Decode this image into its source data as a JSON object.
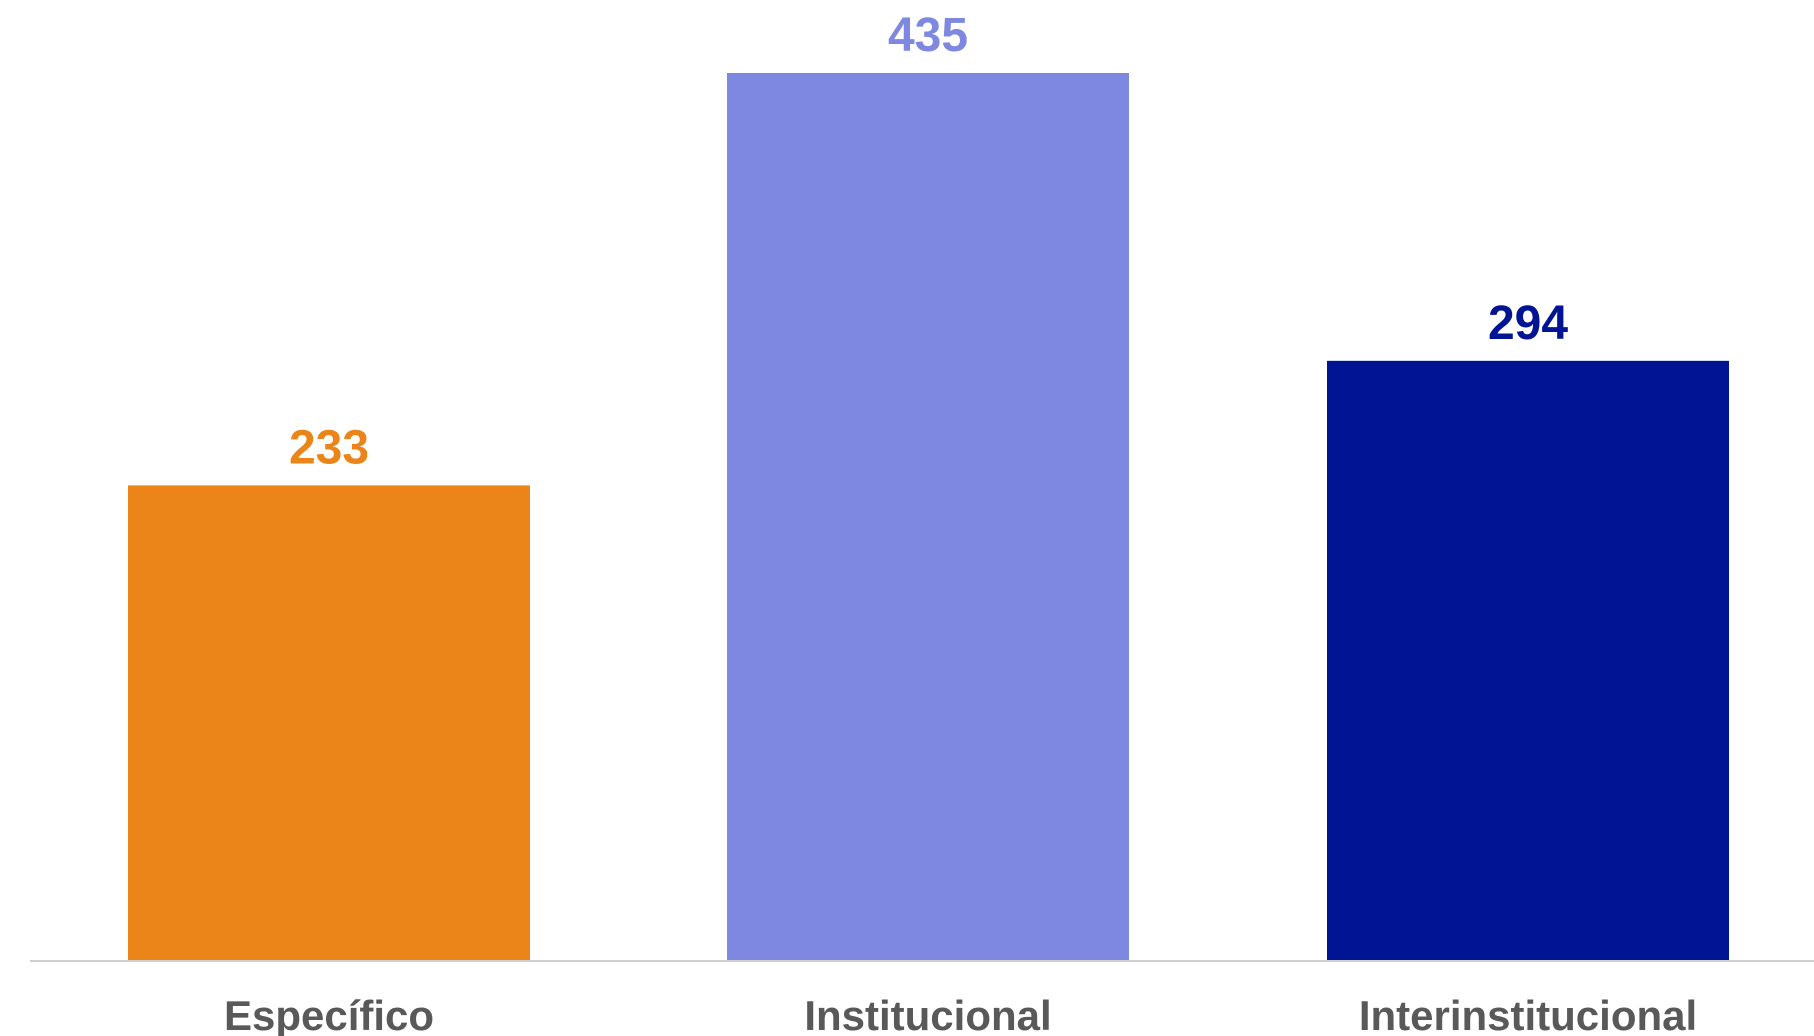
{
  "chart_data": {
    "type": "bar",
    "title": "",
    "xlabel": "",
    "ylabel": "",
    "categories": [
      "Específico",
      "Institucional",
      "Interinstitucional"
    ],
    "values": [
      233,
      435,
      294
    ],
    "colors": [
      "#EB8519",
      "#7E88E0",
      "#001494"
    ],
    "axis_color": "#D0D0D0",
    "category_label_color": "#595959",
    "ylim": [
      0,
      435
    ],
    "grid": false,
    "legend": "none",
    "data_labels": true
  }
}
